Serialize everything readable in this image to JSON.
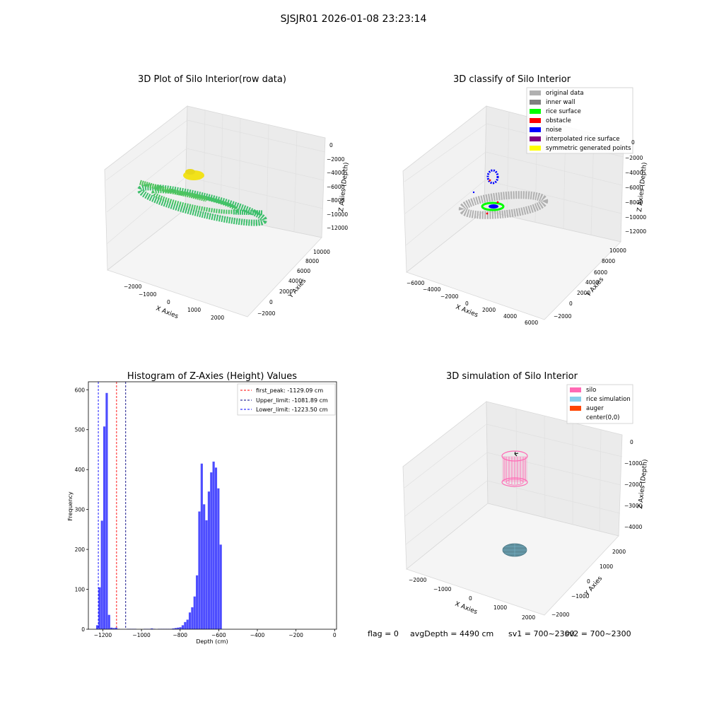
{
  "suptitle": "SJSJR01 2026-01-08 23:23:14",
  "status_line": {
    "flag": "flag = 0",
    "avg_depth": "avgDepth = 4490 cm",
    "sv1": "sv1 = 700~2300",
    "sv2": "sv2 = 700~2300"
  },
  "colors": {
    "raw_cloud": "#3dbf6c",
    "raw_top": "#f2e21a",
    "original_data": "#b0b0b0",
    "inner_wall": "#808080",
    "rice_surface": "#00ff00",
    "obstacle": "#ff0000",
    "noise": "#0000ff",
    "interpolated": "#800080",
    "symmetric": "#ffff00",
    "silo": "#ff69b4",
    "rice_sim": "#87ceeb",
    "auger": "#ff4500",
    "hist_bar": "#4d4dff"
  },
  "chart_data": [
    {
      "type": "scatter",
      "subtype": "3d",
      "title": "3D Plot of Silo Interior(row data)",
      "xlabel": "X Axies",
      "ylabel": "Y Axies",
      "zlabel": "Z Axies (Depth)",
      "xticks": [
        "−2000",
        "−1000",
        "0",
        "1000",
        "2000"
      ],
      "yticks": [
        "−2000",
        "0",
        "2000",
        "4000",
        "6000",
        "8000",
        "10000"
      ],
      "zticks": [
        "0",
        "−2000",
        "−4000",
        "−6000",
        "−8000",
        "−10000",
        "−12000"
      ]
    },
    {
      "type": "scatter",
      "subtype": "3d",
      "title": "3D classify of Silo Interior",
      "xlabel": "X Axies",
      "ylabel": "Y Axies",
      "zlabel": "Z Axies (Depth)",
      "xticks": [
        "−6000",
        "−4000",
        "−2000",
        "0",
        "2000",
        "4000",
        "6000"
      ],
      "yticks": [
        "−2000",
        "0",
        "2000",
        "4000",
        "6000",
        "8000",
        "10000"
      ],
      "zticks": [
        "0",
        "−2000",
        "−4000",
        "−6000",
        "−8000",
        "−10000",
        "−12000"
      ],
      "legend": [
        "original data",
        "inner wall",
        "rice surface",
        "obstacle",
        "noise",
        "interpolated rice surface",
        "symmetric generated points"
      ],
      "legend_position": "top-right"
    },
    {
      "type": "bar",
      "subtype": "histogram",
      "title": "Histogram of Z-Axies (Height) Values",
      "xlabel": "Depth (cm)",
      "ylabel": "Frequency",
      "xlim": [
        -1275,
        10
      ],
      "ylim": [
        0,
        620
      ],
      "xticks": [
        "−1200",
        "−1000",
        "−800",
        "−600",
        "−400",
        "−200",
        "0"
      ],
      "yticks": [
        "0",
        "100",
        "200",
        "300",
        "400",
        "500",
        "600"
      ],
      "bin_start": -1235,
      "bin_width": 12.3,
      "values": [
        10,
        105,
        272,
        508,
        592,
        36,
        4,
        3,
        4,
        1,
        0,
        0,
        0,
        1,
        1,
        1,
        1,
        0,
        0,
        0,
        1,
        1,
        1,
        2,
        1,
        0,
        1,
        1,
        1,
        1,
        1,
        1,
        2,
        3,
        4,
        5,
        10,
        18,
        24,
        42,
        55,
        82,
        135,
        295,
        415,
        313,
        273,
        345,
        393,
        420,
        405,
        353,
        212
      ],
      "lines": [
        {
          "label": "first_peak: -1129.09 cm",
          "x": -1129.09,
          "color": "#ff0000"
        },
        {
          "label": "Upper_limit: -1081.89 cm",
          "x": -1081.89,
          "color": "#000080"
        },
        {
          "label": "Lower_limit: -1223.50 cm",
          "x": -1223.5,
          "color": "#0000ff"
        }
      ],
      "legend_position": "top-right"
    },
    {
      "type": "scatter",
      "subtype": "3d",
      "title": "3D simulation of Silo Interior",
      "xlabel": "X Axies",
      "ylabel": "Y Axies",
      "zlabel": "Z Axies (Depth)",
      "xticks": [
        "−2000",
        "−1000",
        "0",
        "1000",
        "2000"
      ],
      "yticks": [
        "−2000",
        "−1000",
        "0",
        "1000",
        "2000"
      ],
      "zticks": [
        "0",
        "−1000",
        "−2000",
        "−3000",
        "−4000"
      ],
      "legend": [
        "silo",
        "rice simulation",
        "auger",
        "center(0,0)"
      ],
      "legend_position": "top-right"
    }
  ]
}
